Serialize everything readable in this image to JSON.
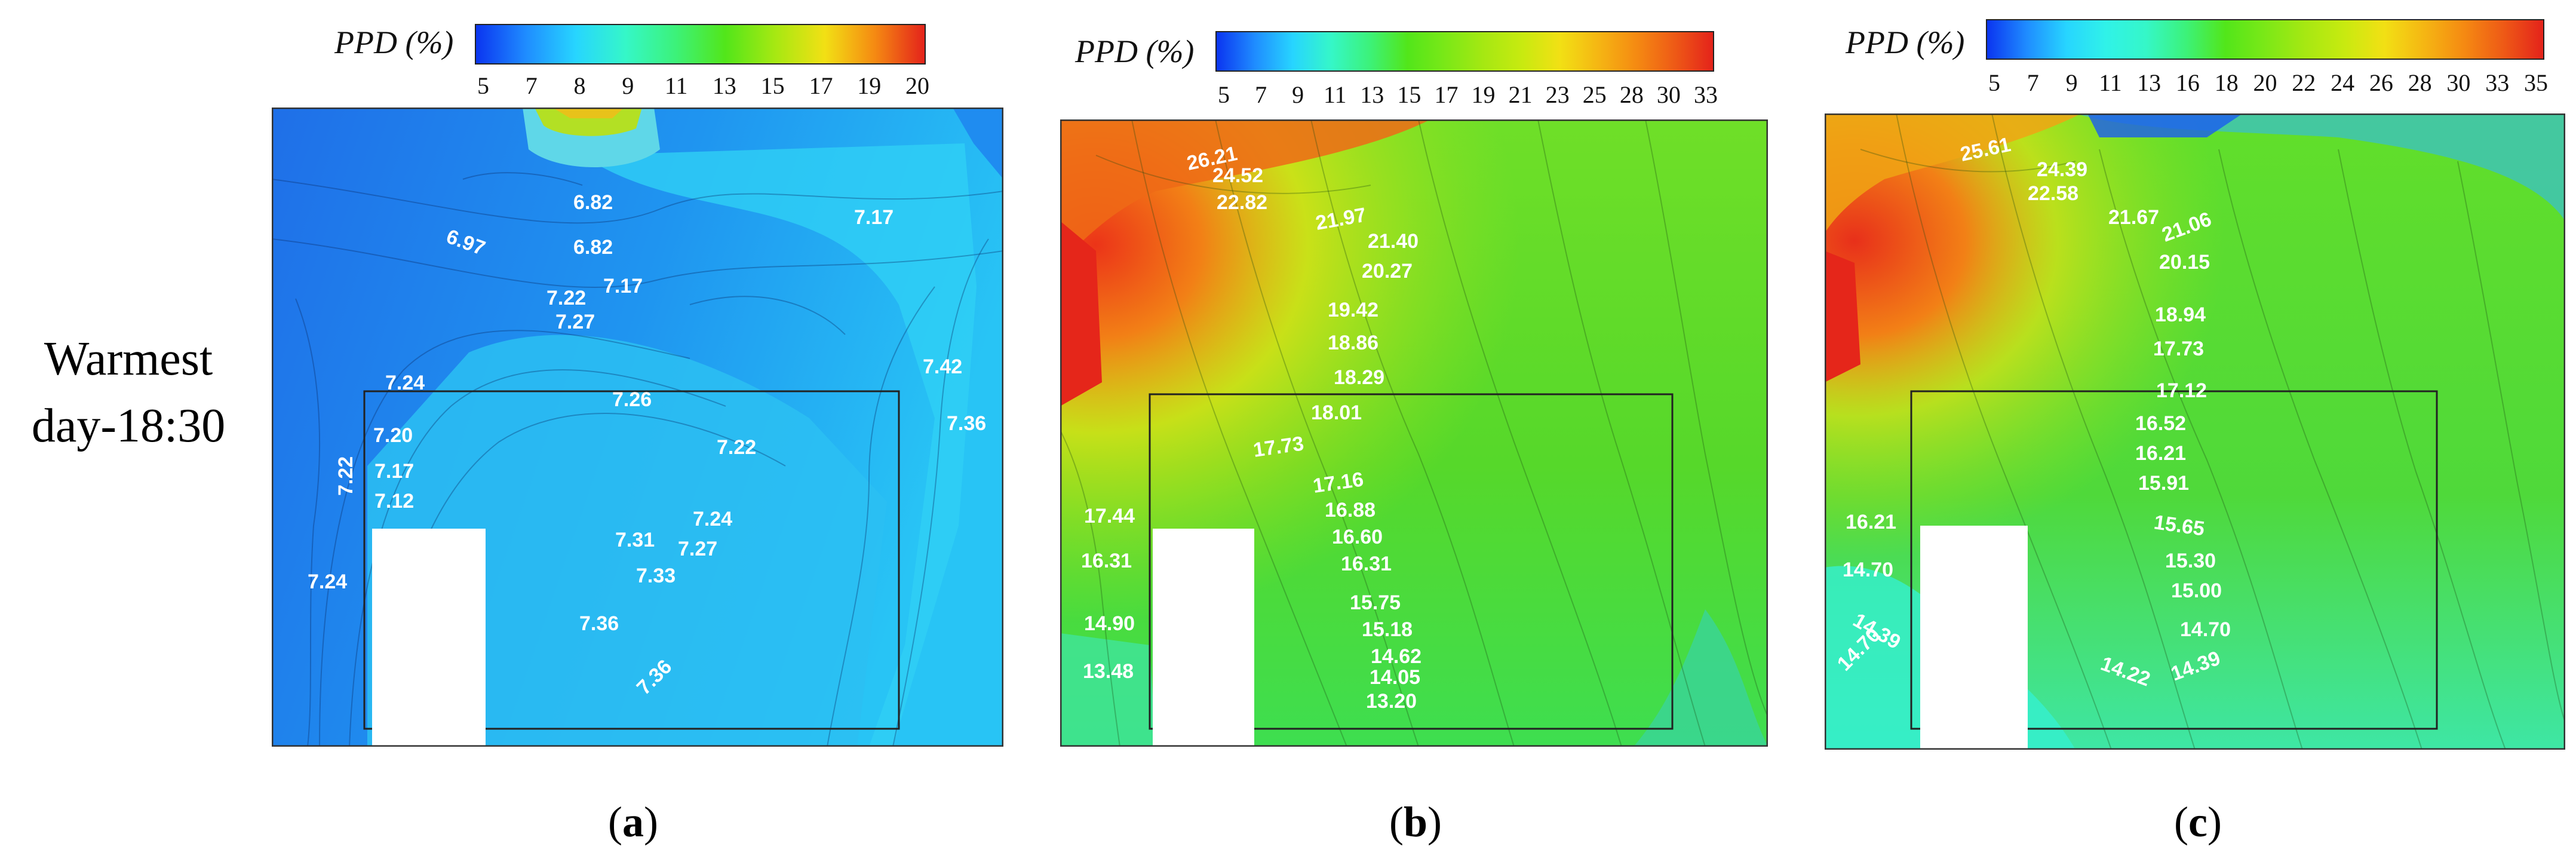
{
  "row_label": [
    "Warmest",
    "day-18:30"
  ],
  "colorbar_title": "PPD (%)",
  "panels": [
    {
      "id": "a",
      "subcaption": "a",
      "ticks": [
        "5",
        "7",
        "8",
        "9",
        "11",
        "13",
        "15",
        "17",
        "19",
        "20"
      ],
      "gradient": [
        "#0b35f0",
        "#1f8cff",
        "#27d5ff",
        "#35f7c8",
        "#3cf27a",
        "#52e61a",
        "#a6e812",
        "#f2e014",
        "#f58a12",
        "#e4231b"
      ],
      "background": [
        "#1f6fe8",
        "#1f95f0",
        "#28c4f5"
      ],
      "labels": [
        "6.82",
        "6.97",
        "6.82",
        "7.17",
        "7.17",
        "7.22",
        "7.27",
        "7.24",
        "7.26",
        "7.42",
        "7.20",
        "7.36",
        "7.22",
        "7.22",
        "7.17",
        "7.12",
        "7.24",
        "7.31",
        "7.27",
        "7.24",
        "7.33",
        "7.36",
        "7.36"
      ]
    },
    {
      "id": "b",
      "subcaption": "b",
      "ticks": [
        "5",
        "7",
        "9",
        "11",
        "13",
        "15",
        "17",
        "19",
        "21",
        "23",
        "25",
        "28",
        "30",
        "33"
      ],
      "gradient": [
        "#0b35f0",
        "#1f8cff",
        "#27d5ff",
        "#35f7c8",
        "#3cf27a",
        "#52e61a",
        "#7be817",
        "#a6e812",
        "#c8ea10",
        "#f2e014",
        "#f5b613",
        "#f58a12",
        "#ee5a16",
        "#e4231b"
      ],
      "background": [
        "#6fdf28",
        "#56d82a",
        "#3ede50"
      ],
      "labels": [
        "26.21",
        "24.52",
        "22.82",
        "21.97",
        "21.40",
        "20.27",
        "19.42",
        "18.86",
        "18.29",
        "18.01",
        "17.73",
        "17.16",
        "16.88",
        "17.44",
        "16.60",
        "16.31",
        "16.31",
        "15.75",
        "15.18",
        "14.90",
        "14.62",
        "14.05",
        "13.48",
        "13.20"
      ]
    },
    {
      "id": "c",
      "subcaption": "c",
      "ticks": [
        "5",
        "7",
        "9",
        "11",
        "13",
        "16",
        "18",
        "20",
        "22",
        "24",
        "26",
        "28",
        "30",
        "33",
        "35"
      ],
      "gradient": [
        "#0b35f0",
        "#1f8cff",
        "#27d5ff",
        "#30f2e8",
        "#35f7c8",
        "#3cf27a",
        "#52e61a",
        "#7be817",
        "#a6e812",
        "#c8ea10",
        "#f2e014",
        "#f5b613",
        "#f58a12",
        "#ee5a16",
        "#e4231b"
      ],
      "background": [
        "#62de2a",
        "#4fd93a",
        "#3ee6a5"
      ],
      "labels": [
        "25.61",
        "24.39",
        "22.58",
        "21.67",
        "21.06",
        "20.15",
        "18.94",
        "17.73",
        "17.12",
        "16.52",
        "16.21",
        "16.21",
        "15.91",
        "15.65",
        "14.70",
        "15.30",
        "15.00",
        "14.39",
        "14.70",
        "14.70",
        "14.22",
        "14.39"
      ]
    }
  ]
}
